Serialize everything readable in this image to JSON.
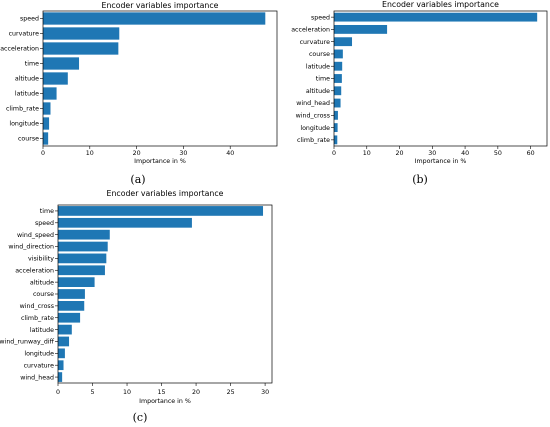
{
  "chart_data": [
    {
      "type": "bar",
      "orientation": "horizontal",
      "panel_label": "(a)",
      "title": "Encoder variables importance",
      "xlabel": "Importance in %",
      "ylabel": "",
      "xlim": [
        0,
        50
      ],
      "xticks": [
        0,
        10,
        20,
        30,
        40
      ],
      "categories": [
        "speed",
        "curvature",
        "acceleration",
        "time",
        "altitude",
        "latitude",
        "climb_rate",
        "longitude",
        "course"
      ],
      "values": [
        47.5,
        16.3,
        16.1,
        7.7,
        5.3,
        2.9,
        1.6,
        1.3,
        1.1
      ],
      "grid": false,
      "color": "#1f77b4"
    },
    {
      "type": "bar",
      "orientation": "horizontal",
      "panel_label": "(b)",
      "title": "Encoder variables importance",
      "xlabel": "Importance in %",
      "ylabel": "",
      "xlim": [
        0,
        65
      ],
      "xticks": [
        0,
        10,
        20,
        30,
        40,
        50,
        60
      ],
      "categories": [
        "speed",
        "acceleration",
        "curvature",
        "course",
        "latitude",
        "time",
        "altitude",
        "wind_head",
        "wind_cross",
        "longitude",
        "climb_rate"
      ],
      "values": [
        62.0,
        16.2,
        5.5,
        2.7,
        2.5,
        2.4,
        2.2,
        2.0,
        1.2,
        1.1,
        1.0
      ],
      "grid": false,
      "color": "#1f77b4"
    },
    {
      "type": "bar",
      "orientation": "horizontal",
      "panel_label": "(c)",
      "title": "Encoder variables importance",
      "xlabel": "Importance in %",
      "ylabel": "",
      "xlim": [
        0,
        31
      ],
      "xticks": [
        0,
        5,
        10,
        15,
        20,
        25,
        30
      ],
      "categories": [
        "time",
        "speed",
        "wind_speed",
        "wind_direction",
        "visibility",
        "acceleration",
        "altitude",
        "course",
        "wind_cross",
        "climb_rate",
        "latitude",
        "wind_runway_diff",
        "longitude",
        "curvature",
        "wind_head"
      ],
      "values": [
        29.7,
        19.4,
        7.5,
        7.2,
        7.0,
        6.8,
        5.3,
        3.9,
        3.8,
        3.2,
        2.0,
        1.6,
        1.0,
        0.8,
        0.6
      ],
      "grid": false,
      "color": "#1f77b4"
    }
  ]
}
